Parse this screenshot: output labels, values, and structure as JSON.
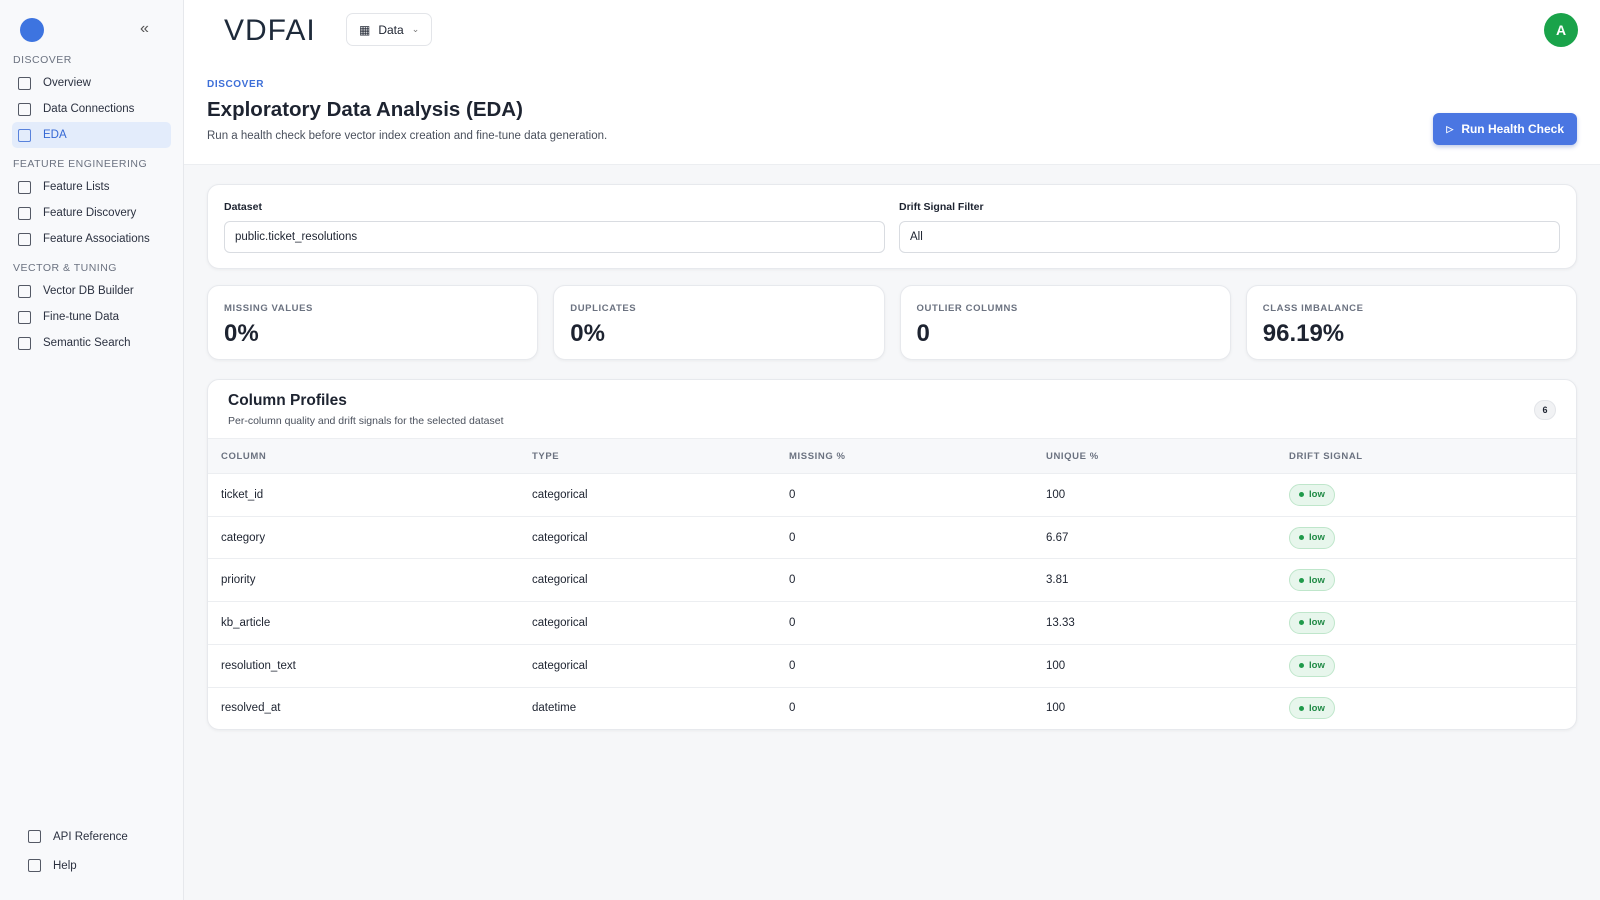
{
  "sidebar": {
    "sections": [
      {
        "title": "DISCOVER",
        "items": [
          {
            "label": "Overview"
          },
          {
            "label": "Data Connections"
          },
          {
            "label": "EDA",
            "active": true
          }
        ]
      },
      {
        "title": "FEATURE ENGINEERING",
        "items": [
          {
            "label": "Feature Lists"
          },
          {
            "label": "Feature Discovery"
          },
          {
            "label": "Feature Associations"
          }
        ]
      },
      {
        "title": "VECTOR & TUNING",
        "items": [
          {
            "label": "Vector DB Builder"
          },
          {
            "label": "Fine-tune Data"
          },
          {
            "label": "Semantic Search"
          }
        ]
      }
    ],
    "footer": [
      "API Reference",
      "Help"
    ]
  },
  "topbar": {
    "logo": "VDFAI",
    "menu": "Data",
    "avatar": "A"
  },
  "header": {
    "eyebrow": "DISCOVER",
    "title": "Exploratory Data Analysis (EDA)",
    "subtitle": "Run a health check before vector index creation and fine-tune data generation.",
    "button": "Run Health Check"
  },
  "filters": [
    {
      "label": "Dataset",
      "value": "public.ticket_resolutions"
    },
    {
      "label": "Drift Signal Filter",
      "value": "All"
    }
  ],
  "metrics": [
    {
      "label": "MISSING VALUES",
      "value": "0%"
    },
    {
      "label": "DUPLICATES",
      "value": "0%"
    },
    {
      "label": "OUTLIER COLUMNS",
      "value": "0"
    },
    {
      "label": "CLASS IMBALANCE",
      "value": "96.19%"
    }
  ],
  "table": {
    "title": "Column Profiles",
    "subtitle": "Per-column quality and drift signals for the selected dataset",
    "count": 6,
    "columns": [
      "COLUMN",
      "TYPE",
      "MISSING %",
      "UNIQUE %",
      "DRIFT SIGNAL"
    ],
    "rows": [
      [
        "ticket_id",
        "categorical",
        0,
        100,
        "low"
      ],
      [
        "category",
        "categorical",
        0,
        6.67,
        "low"
      ],
      [
        "priority",
        "categorical",
        0,
        3.81,
        "low"
      ],
      [
        "kb_article",
        "categorical",
        0,
        13.33,
        "low"
      ],
      [
        "resolution_text",
        "categorical",
        0,
        100,
        "low"
      ],
      [
        "resolved_at",
        "datetime",
        0,
        100,
        "low"
      ]
    ]
  }
}
